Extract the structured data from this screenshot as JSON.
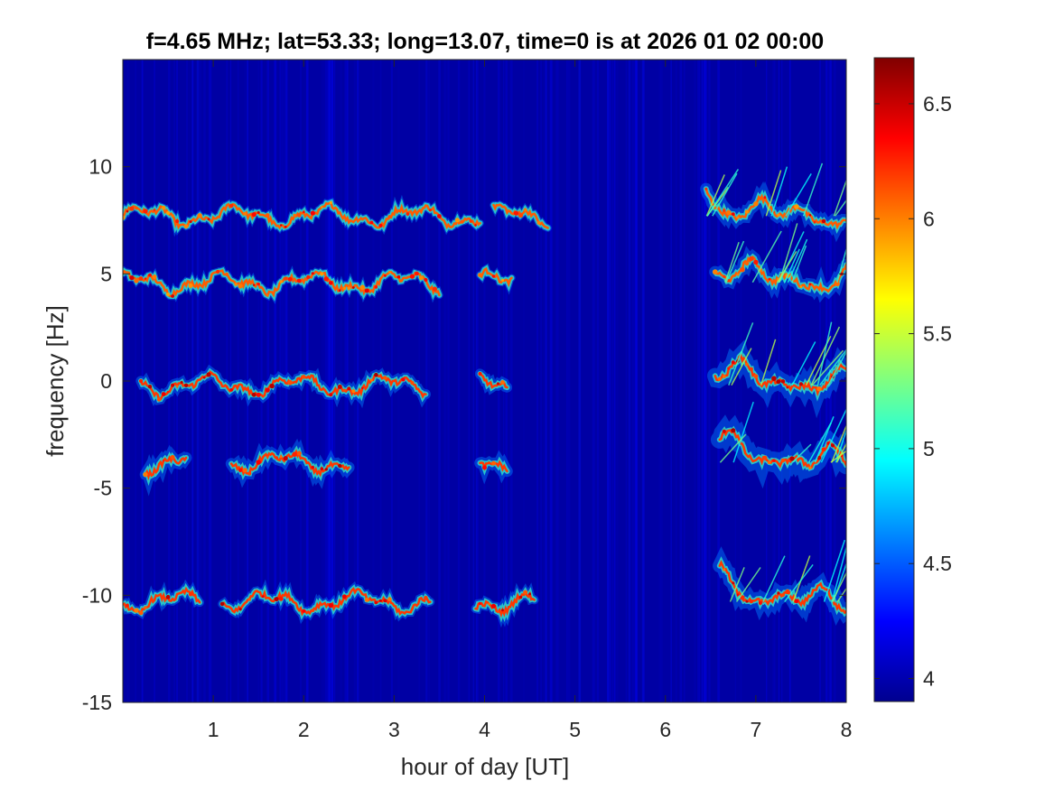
{
  "chart_data": {
    "type": "heatmap",
    "title": "f=4.65 MHz;  lat=53.33; long=13.07, time=0 is at 2026 01 02 00:00",
    "xlabel": "hour of day [UT]",
    "ylabel": "frequency [Hz]",
    "xlim": [
      0,
      8
    ],
    "ylim": [
      -15,
      15
    ],
    "xticks": [
      1,
      2,
      3,
      4,
      5,
      6,
      7,
      8
    ],
    "xtick_labels": [
      "1",
      "2",
      "3",
      "4",
      "5",
      "6",
      "7",
      "8"
    ],
    "yticks": [
      -15,
      -10,
      -5,
      0,
      5,
      10
    ],
    "ytick_labels": [
      "-15",
      "-10",
      "-5",
      "0",
      "5",
      "10"
    ],
    "colorbar": {
      "colormap": "jet",
      "range": [
        3.9,
        6.7
      ],
      "ticks": [
        4,
        4.5,
        5,
        5.5,
        6,
        6.5
      ],
      "tick_labels": [
        "4",
        "4.5",
        "5",
        "5.5",
        "6",
        "6.5"
      ]
    },
    "background_level": 4.0,
    "traces": [
      {
        "name": "band-7.5Hz",
        "freq": 7.7,
        "segments": [
          [
            0.0,
            3.95
          ],
          [
            4.1,
            4.7
          ],
          [
            6.45,
            8.0
          ]
        ],
        "peak": 6.5,
        "spread": 0.6
      },
      {
        "name": "band-4.5Hz",
        "freq": 4.6,
        "segments": [
          [
            0.0,
            3.5
          ],
          [
            3.95,
            4.3
          ],
          [
            6.55,
            8.0
          ]
        ],
        "peak": 6.5,
        "spread": 0.6
      },
      {
        "name": "band-0Hz",
        "freq": -0.2,
        "segments": [
          [
            0.2,
            3.35
          ],
          [
            3.95,
            4.25
          ],
          [
            6.55,
            8.0
          ]
        ],
        "peak": 6.6,
        "spread": 0.8
      },
      {
        "name": "band-minus4Hz",
        "freq": -3.8,
        "segments": [
          [
            0.25,
            0.7
          ],
          [
            1.2,
            2.5
          ],
          [
            3.95,
            4.25
          ],
          [
            6.6,
            8.0
          ]
        ],
        "peak": 6.6,
        "spread": 0.9
      },
      {
        "name": "band-minus10Hz",
        "freq": -10.3,
        "segments": [
          [
            0.0,
            0.85
          ],
          [
            1.1,
            3.4
          ],
          [
            3.9,
            4.55
          ],
          [
            6.6,
            8.0
          ]
        ],
        "peak": 6.6,
        "spread": 0.7
      }
    ]
  }
}
